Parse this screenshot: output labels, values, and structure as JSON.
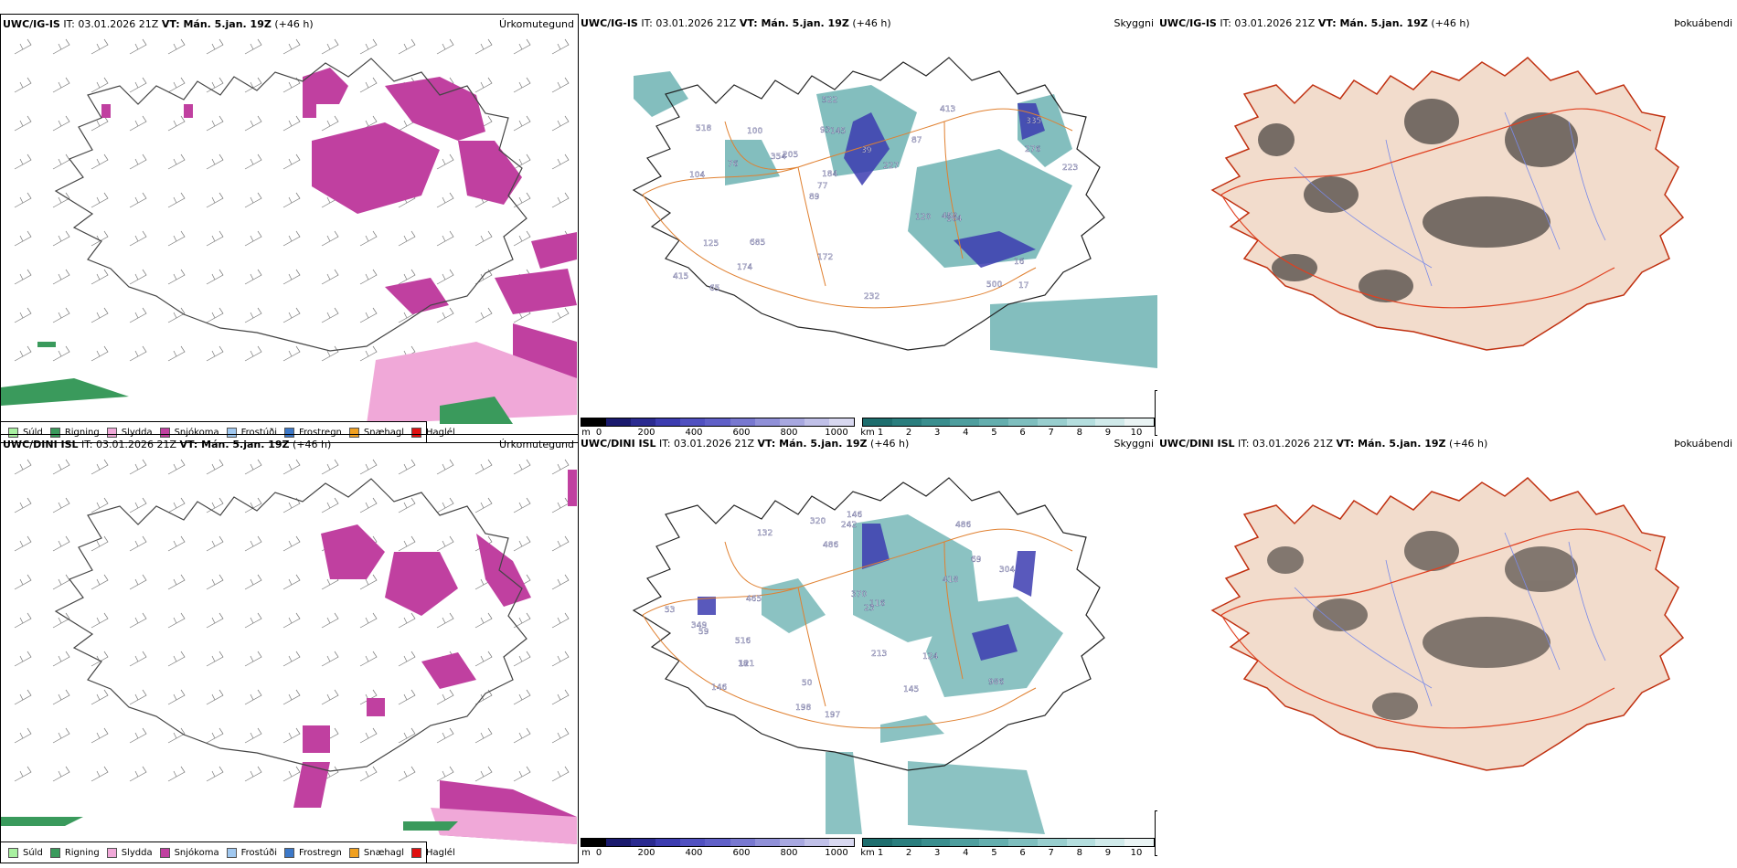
{
  "rows": [
    {
      "model": "UWC/IG-IS",
      "it_label": "IT: 03.01.2026 21Z",
      "vt_label": "VT: Mán. 5.jan. 19Z",
      "lead": "(+46 h)",
      "panels": [
        "Úrkomutegund",
        "Skyggni",
        "Þokuábendi"
      ],
      "depth_labels": [
        "17",
        "104",
        "335",
        "89",
        "87",
        "65",
        "93",
        "39",
        "125",
        "205",
        "415",
        "174",
        "145",
        "227",
        "164",
        "518",
        "522",
        "223",
        "120",
        "276",
        "77",
        "172",
        "184",
        "100",
        "413",
        "685",
        "500",
        "16",
        "450",
        "232",
        "354",
        "76"
      ]
    },
    {
      "model": "UWC/DINI ISL",
      "it_label": "IT: 03.01.2026 21Z",
      "vt_label": "VT: Mán. 5.jan. 19Z",
      "lead": "(+46 h)",
      "panels": [
        "Úrkomutegund",
        "Skyggni",
        "Þokuábendi"
      ],
      "depth_labels": [
        "146",
        "486",
        "132",
        "69",
        "213",
        "465",
        "516",
        "121",
        "304",
        "418",
        "349",
        "146",
        "124",
        "23",
        "197",
        "320",
        "986",
        "53",
        "18",
        "198",
        "145",
        "242",
        "486",
        "116",
        "370",
        "50",
        "59"
      ]
    }
  ],
  "precip_legend": [
    {
      "label": "Súld",
      "color": "#a8f0a0"
    },
    {
      "label": "Rigning",
      "color": "#3a9a5c"
    },
    {
      "label": "Slydda",
      "color": "#f0a8d8"
    },
    {
      "label": "Snjókoma",
      "color": "#c040a0"
    },
    {
      "label": "Frostúði",
      "color": "#a0c8f0"
    },
    {
      "label": "Frostregn",
      "color": "#3c78c8"
    },
    {
      "label": "Snæhagl",
      "color": "#f0a020"
    },
    {
      "label": "Haglél",
      "color": "#e01010"
    }
  ],
  "depth_bar": {
    "unit": "m",
    "ticks": [
      "0",
      "200",
      "400",
      "600",
      "800",
      "1000"
    ],
    "colors": [
      "#000000",
      "#1a1a6e",
      "#2a2a90",
      "#3c3cb0",
      "#5050c0",
      "#6060c8",
      "#7878d0",
      "#9090d8",
      "#a8a8e0",
      "#c0c0e8",
      "#d8d8f0"
    ]
  },
  "visibility_bar": {
    "unit": "km",
    "ticks": [
      "1",
      "2",
      "3",
      "4",
      "5",
      "6",
      "7",
      "8",
      "9",
      "10"
    ],
    "colors": [
      "#1e6e6e",
      "#2a7e7e",
      "#3a8e8e",
      "#4e9e9e",
      "#64aeae",
      "#7ebebe",
      "#98cece",
      "#b4dede",
      "#d0eaea",
      "#eaf4f4"
    ]
  },
  "fog_key": [
    {
      "label": "0",
      "color": "#000000"
    },
    {
      "label": "60",
      "color": "#ffffff"
    }
  ]
}
